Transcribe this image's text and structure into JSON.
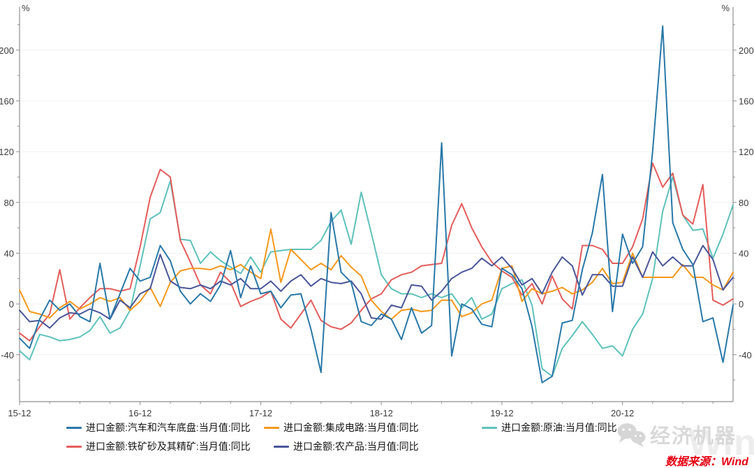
{
  "chart_data": {
    "type": "line",
    "title": "",
    "y_unit": "%",
    "ylim": [
      -77,
      234
    ],
    "y_ticks": [
      -40,
      0,
      40,
      80,
      120,
      160,
      200
    ],
    "y_minor_step": 20,
    "grid": "horizontal-major",
    "legend_position": "bottom",
    "x_major_tick_labels": [
      "15-12",
      "16-12",
      "17-12",
      "18-12",
      "19-12",
      "20-12"
    ],
    "x_major_indices": [
      0,
      12,
      24,
      36,
      48,
      60
    ],
    "x_minor_step": 3,
    "draw_order": [
      2,
      3,
      1,
      4,
      0
    ],
    "x_labels": [
      "15-12",
      "16-01",
      "16-02",
      "16-03",
      "16-04",
      "16-05",
      "16-06",
      "16-07",
      "16-08",
      "16-09",
      "16-10",
      "16-11",
      "16-12",
      "17-01",
      "17-02",
      "17-03",
      "17-04",
      "17-05",
      "17-06",
      "17-07",
      "17-08",
      "17-09",
      "17-10",
      "17-11",
      "17-12",
      "18-01",
      "18-02",
      "18-03",
      "18-04",
      "18-05",
      "18-06",
      "18-07",
      "18-08",
      "18-09",
      "18-10",
      "18-11",
      "18-12",
      "19-01",
      "19-02",
      "19-03",
      "19-04",
      "19-05",
      "19-06",
      "19-07",
      "19-08",
      "19-09",
      "19-10",
      "19-11",
      "19-12",
      "20-01",
      "20-02",
      "20-03",
      "20-04",
      "20-05",
      "20-06",
      "20-07",
      "20-08",
      "20-09",
      "20-10",
      "20-11",
      "20-12",
      "21-01",
      "21-02",
      "21-03",
      "21-04",
      "21-05",
      "21-06",
      "21-07",
      "21-08",
      "21-09",
      "21-10",
      "21-11"
    ],
    "series": [
      {
        "name": "进口金额:汽车和汽车底盘:当月值:同比",
        "color": "#2878a8",
        "values": [
          -27,
          -35,
          -12,
          3,
          -5,
          0,
          -10,
          -14,
          32,
          -12,
          8,
          28,
          18,
          21,
          46,
          34,
          10,
          0,
          8,
          2,
          15,
          42,
          5,
          30,
          8,
          10,
          -3,
          7,
          8,
          -20,
          -54,
          72,
          25,
          17,
          -14,
          -17,
          -8,
          -12,
          -28,
          -3,
          -23,
          -17,
          127,
          -41,
          0,
          -4,
          -16,
          -18,
          28,
          23,
          12,
          -18,
          -62,
          -57,
          -15,
          -13,
          27,
          56,
          102,
          -6,
          55,
          32,
          45,
          120,
          219,
          64,
          43,
          31,
          -14,
          -11,
          -46,
          -1
        ]
      },
      {
        "name": "进口金额:集成电路:当月值:同比",
        "color": "#f5981d",
        "values": [
          11,
          -6,
          -8,
          -11,
          -3,
          2,
          -4,
          0,
          5,
          2,
          5,
          -5,
          2,
          13,
          -2,
          17,
          26,
          28,
          28,
          27,
          30,
          27,
          31,
          25,
          20,
          59,
          17,
          43,
          35,
          27,
          32,
          27,
          38,
          29,
          22,
          3,
          -6,
          -12,
          -5,
          -4,
          -6,
          -5,
          3,
          3,
          -10,
          -7,
          0,
          3,
          28,
          30,
          2,
          12,
          8,
          10,
          13,
          8,
          11,
          17,
          28,
          16,
          17,
          40,
          21,
          21,
          21,
          21,
          31,
          21,
          21,
          15,
          11,
          25
        ]
      },
      {
        "name": "进口金额:原油:当月值:同比",
        "color": "#5ec1bb",
        "values": [
          -37,
          -44,
          -24,
          -26,
          -29,
          -28,
          -26,
          -21,
          -10,
          -23,
          -19,
          -5,
          30,
          67,
          72,
          97,
          51,
          50,
          32,
          41,
          34,
          29,
          24,
          37,
          25,
          41,
          42,
          43,
          43,
          43,
          50,
          65,
          74,
          47,
          88,
          56,
          23,
          12,
          8,
          8,
          5,
          8,
          5,
          8,
          -3,
          5,
          -12,
          -8,
          12,
          16,
          19,
          -1,
          -51,
          -57,
          -35,
          -25,
          -14,
          -24,
          -35,
          -33,
          -41,
          -20,
          -8,
          20,
          73,
          100,
          70,
          58,
          59,
          36,
          55,
          78
        ]
      },
      {
        "name": "进口金额:铁矿砂及其精矿:当月值:同比",
        "color": "#e35d5b",
        "values": [
          -23,
          -29,
          -18,
          -8,
          27,
          -12,
          -3,
          5,
          12,
          12,
          10,
          12,
          45,
          84,
          106,
          100,
          50,
          33,
          15,
          8,
          25,
          17,
          -2,
          2,
          5,
          10,
          -12,
          -19,
          -8,
          3,
          -13,
          -18,
          -20,
          -15,
          -5,
          4,
          8,
          19,
          23,
          25,
          30,
          31,
          32,
          62,
          79,
          60,
          45,
          33,
          26,
          21,
          7,
          16,
          0,
          22,
          4,
          -4,
          46,
          46,
          43,
          32,
          32,
          45,
          67,
          111,
          92,
          103,
          70,
          63,
          94,
          3,
          -1,
          4
        ]
      },
      {
        "name": "进口金额:农产品:当月值:同比",
        "color": "#4a5699",
        "values": [
          -5,
          -14,
          -13,
          -19,
          -11,
          -7,
          -8,
          -4,
          -7,
          -12,
          3,
          -3,
          8,
          12,
          39,
          18,
          13,
          12,
          15,
          12,
          18,
          15,
          20,
          12,
          12,
          18,
          10,
          18,
          23,
          14,
          20,
          17,
          16,
          18,
          8,
          -11,
          -12,
          -1,
          -3,
          15,
          14,
          3,
          10,
          20,
          25,
          28,
          36,
          30,
          37,
          28,
          15,
          20,
          8,
          25,
          37,
          30,
          7,
          23,
          23,
          14,
          14,
          37,
          21,
          41,
          30,
          37,
          30,
          30,
          46,
          35,
          11,
          21
        ]
      }
    ]
  },
  "legend": {
    "row1_items": [
      0,
      1,
      2
    ],
    "row2_items": [
      3,
      4
    ]
  },
  "branding": {
    "logo_text": "经济机器",
    "watermark_text": "Wind"
  },
  "footer": {
    "source_text": "数据来源：Wind"
  }
}
